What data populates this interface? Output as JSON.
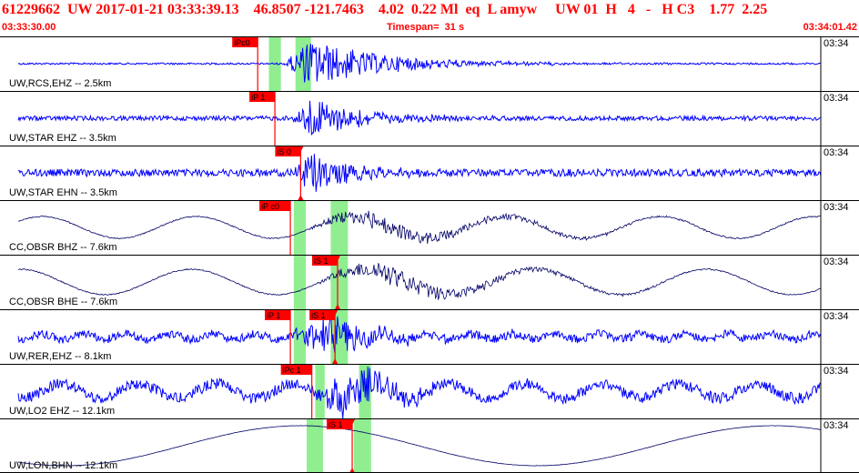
{
  "header": {
    "event_id": "61229662",
    "network": "UW",
    "date_time": "2017-01-21 03:33:39.13",
    "latitude": "46.8507",
    "longitude": "-121.7463",
    "depth": "4.02",
    "magnitude": "0.22",
    "mag_type": "Ml",
    "event_type": "eq",
    "event_class": "L",
    "author": "amyw",
    "source_net": "UW",
    "version": "01",
    "flag_h1": "H",
    "flag_num": "4",
    "flag_dash": "-",
    "flag_h2": "H",
    "quality": "C3",
    "value1": "1.77",
    "value2": "2.25"
  },
  "time_axis": {
    "start": "03:33:30.00",
    "timespan_label": "Timespan=  31 s",
    "end": "03:34:01.42"
  },
  "colors": {
    "header_text": "#ff0000",
    "trace_blue": "#0000ff",
    "trace_navy": "#000066",
    "pick_red": "#ff0000",
    "window_green": "#90ee90",
    "separator": "#000000"
  },
  "channels": [
    {
      "label": "UW,RCS,EHZ -- 2.5km",
      "time_label": "03:34",
      "color": "blue",
      "windows": [
        [
          0.313,
          0.327
        ],
        [
          0.344,
          0.362
        ]
      ],
      "picks": [
        {
          "label": "iPc0",
          "t": 0.3,
          "kind": "p"
        }
      ]
    },
    {
      "label": "UW,STAR EHZ -- 3.5km",
      "time_label": "03:34",
      "color": "blue",
      "windows": [],
      "picks": [
        {
          "label": "iP 1",
          "t": 0.32,
          "kind": "p"
        }
      ]
    },
    {
      "label": "UW,STAR EHN -- 3.5km",
      "time_label": "03:34",
      "color": "blue",
      "windows": [],
      "picks": [
        {
          "label": "iS 0",
          "t": 0.35,
          "kind": "s"
        }
      ]
    },
    {
      "label": "CC,OBSR BHZ -- 7.6km",
      "time_label": "03:34",
      "color": "navy",
      "windows": [
        [
          0.342,
          0.356
        ],
        [
          0.385,
          0.405
        ]
      ],
      "picks": [
        {
          "label": "iP c0",
          "t": 0.338,
          "kind": "p"
        }
      ]
    },
    {
      "label": "CC,OBSR BHE -- 7.6km",
      "time_label": "03:34",
      "color": "navy",
      "windows": [
        [
          0.342,
          0.356
        ],
        [
          0.385,
          0.405
        ]
      ],
      "picks": [
        {
          "label": "iS 1",
          "t": 0.393,
          "kind": "s"
        }
      ]
    },
    {
      "label": "UW,RER,EHZ -- 8.1km",
      "time_label": "03:34",
      "color": "blue",
      "windows": [
        [
          0.342,
          0.356
        ],
        [
          0.385,
          0.405
        ]
      ],
      "picks": [
        {
          "label": "iP 1",
          "t": 0.338,
          "kind": "p"
        },
        {
          "label": "iS 1",
          "t": 0.39,
          "kind": "s"
        }
      ]
    },
    {
      "label": "UW,LO2 EHZ -- 12.1km",
      "time_label": "03:34",
      "color": "blue",
      "windows": [
        [
          0.367,
          0.378
        ],
        [
          0.418,
          0.432
        ]
      ],
      "picks": [
        {
          "label": "iPc 1",
          "t": 0.363,
          "kind": "p"
        }
      ]
    },
    {
      "label": "UW,LON,BHN -- 12.1km",
      "time_label": "03:34",
      "color": "navy",
      "windows": [
        [
          0.357,
          0.376
        ],
        [
          0.412,
          0.432
        ]
      ],
      "picks": [
        {
          "label": "iS 1",
          "t": 0.41,
          "kind": "s"
        }
      ]
    }
  ]
}
